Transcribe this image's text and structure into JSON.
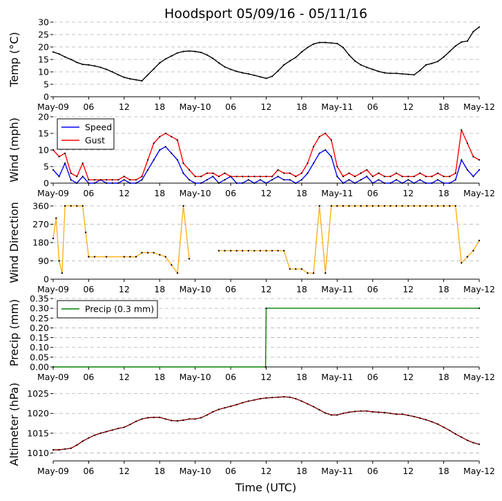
{
  "title": "Hoodsport 05/09/16 - 05/11/16",
  "xlabel": "Time (UTC)",
  "x_ticks": [
    "May-09",
    "06",
    "12",
    "18",
    "May-10",
    "06",
    "12",
    "18",
    "May-11",
    "06",
    "12",
    "18",
    "May-12"
  ],
  "colors": {
    "temp": "#000000",
    "speed": "#0000ff",
    "gust": "#ff0000",
    "direction": "#ffa500",
    "precip": "#008000",
    "altimeter": "#8b0000",
    "grid": "#b0b0b0"
  },
  "chart_data": [
    {
      "type": "line",
      "name": "temperature",
      "ylabel": "Temp (°C)",
      "x_unit": "hours since May-09 00 UTC",
      "xlim": [
        0,
        72
      ],
      "ylim": [
        0,
        30
      ],
      "yticks": [
        "0",
        "5",
        "10",
        "15",
        "20",
        "25",
        "30"
      ],
      "series": [
        {
          "name": "Temp",
          "color": "#000000",
          "x": [
            0,
            1,
            2,
            3,
            4,
            5,
            6,
            7,
            8,
            9,
            10,
            11,
            12,
            13,
            14,
            15,
            16,
            17,
            18,
            19,
            20,
            21,
            22,
            23,
            24,
            25,
            26,
            27,
            28,
            29,
            30,
            31,
            32,
            33,
            34,
            35,
            36,
            37,
            38,
            39,
            40,
            41,
            42,
            43,
            44,
            45,
            46,
            47,
            48,
            49,
            50,
            51,
            52,
            53,
            54,
            55,
            56,
            57,
            58,
            59,
            60,
            61,
            62,
            63,
            64,
            65,
            66,
            67,
            68,
            69,
            70,
            71,
            72
          ],
          "y": [
            18,
            17.2,
            16,
            15,
            13.8,
            13,
            12.8,
            12.4,
            11.8,
            11,
            10,
            8.8,
            7.8,
            7.2,
            6.8,
            6.4,
            8.8,
            11.2,
            13.6,
            15.2,
            16.4,
            17.6,
            18.2,
            18.4,
            18.2,
            17.8,
            16.8,
            15.4,
            13.6,
            12,
            11,
            10.2,
            9.6,
            9.2,
            8.6,
            8,
            7.4,
            8.2,
            10.4,
            12.8,
            14.4,
            15.8,
            18,
            19.8,
            21.2,
            21.8,
            21.8,
            21.6,
            21.4,
            19.8,
            16.8,
            14.4,
            12.8,
            11.8,
            11,
            10.2,
            9.6,
            9.4,
            9.4,
            9.2,
            9,
            8.8,
            10.6,
            12.8,
            13.4,
            14.2,
            16,
            18.2,
            20.4,
            22,
            22.4,
            26.2,
            28
          ]
        }
      ]
    },
    {
      "type": "line",
      "name": "wind",
      "ylabel": "Wind (mph)",
      "x_unit": "hours since May-09 00 UTC",
      "xlim": [
        0,
        72
      ],
      "ylim": [
        0,
        20
      ],
      "yticks": [
        "0",
        "5",
        "10",
        "15",
        "20"
      ],
      "legend_position": "top-left",
      "series": [
        {
          "name": "Speed",
          "color": "#0000ff",
          "x": [
            0,
            1,
            2,
            3,
            4,
            5,
            6,
            7,
            8,
            9,
            10,
            11,
            12,
            13,
            14,
            15,
            16,
            17,
            18,
            19,
            20,
            21,
            22,
            23,
            24,
            25,
            26,
            27,
            28,
            29,
            30,
            31,
            32,
            33,
            34,
            35,
            36,
            37,
            38,
            39,
            40,
            41,
            42,
            43,
            44,
            45,
            46,
            47,
            48,
            49,
            50,
            51,
            52,
            53,
            54,
            55,
            56,
            57,
            58,
            59,
            60,
            61,
            62,
            63,
            64,
            65,
            66,
            67,
            68,
            69,
            70,
            71,
            72
          ],
          "y": [
            4,
            2,
            6,
            1,
            0,
            2,
            0,
            0,
            1,
            0,
            0,
            0,
            1,
            0,
            0,
            1,
            4,
            7,
            10,
            11,
            9,
            7,
            3,
            1,
            0,
            0,
            1,
            2,
            0,
            1,
            2,
            0,
            0,
            1,
            0,
            1,
            0,
            1,
            2,
            1,
            1,
            0,
            1,
            3,
            6,
            9,
            10,
            8,
            2,
            0,
            1,
            0,
            1,
            2,
            0,
            1,
            0,
            0,
            1,
            0,
            1,
            0,
            1,
            0,
            0,
            1,
            0,
            0,
            1,
            7,
            4,
            2,
            4
          ]
        },
        {
          "name": "Gust",
          "color": "#ff0000",
          "x": [
            0,
            1,
            2,
            3,
            4,
            5,
            6,
            7,
            8,
            9,
            10,
            11,
            12,
            13,
            14,
            15,
            16,
            17,
            18,
            19,
            20,
            21,
            22,
            23,
            24,
            25,
            26,
            27,
            28,
            29,
            30,
            31,
            32,
            33,
            34,
            35,
            36,
            37,
            38,
            39,
            40,
            41,
            42,
            43,
            44,
            45,
            46,
            47,
            48,
            49,
            50,
            51,
            52,
            53,
            54,
            55,
            56,
            57,
            58,
            59,
            60,
            61,
            62,
            63,
            64,
            65,
            66,
            67,
            68,
            69,
            70,
            71,
            72
          ],
          "y": [
            10,
            8,
            9,
            3,
            2,
            6,
            1,
            1,
            1,
            1,
            1,
            1,
            2,
            1,
            1,
            2,
            7,
            12,
            14,
            15,
            14,
            13,
            6,
            4,
            2,
            2,
            3,
            3,
            2,
            3,
            2,
            2,
            2,
            2,
            2,
            2,
            2,
            2,
            4,
            3,
            3,
            2,
            3,
            6,
            11,
            14,
            15,
            13,
            5,
            2,
            3,
            2,
            3,
            4,
            2,
            3,
            2,
            2,
            3,
            2,
            2,
            2,
            3,
            2,
            2,
            3,
            2,
            2,
            3,
            16,
            12,
            8,
            7
          ]
        }
      ]
    },
    {
      "type": "scatter",
      "name": "wind_direction",
      "ylabel": "Wind Direction",
      "x_unit": "hours since May-09 00 UTC",
      "xlim": [
        0,
        72
      ],
      "ylim": [
        0,
        360
      ],
      "yticks": [
        "0",
        "90",
        "180",
        "270",
        "360"
      ],
      "series": [
        {
          "name": "Direction",
          "color": "#ffa500",
          "x": [
            0,
            0.5,
            1,
            1.5,
            2,
            3,
            4,
            5,
            5.5,
            6,
            7,
            9,
            12,
            13,
            14,
            15,
            16,
            17,
            18,
            19,
            20,
            21,
            22,
            23,
            24,
            25,
            28,
            29,
            30,
            31,
            32,
            33,
            34,
            35,
            36,
            37,
            38,
            39,
            40,
            41,
            42,
            43,
            44,
            45,
            46,
            47,
            48,
            49,
            50,
            51,
            52,
            53,
            54,
            55,
            56,
            57,
            58,
            59,
            60,
            61,
            62,
            63,
            64,
            65,
            66,
            67,
            68,
            69,
            70,
            71,
            72
          ],
          "y": [
            200,
            300,
            90,
            30,
            360,
            360,
            360,
            360,
            230,
            110,
            110,
            110,
            110,
            110,
            110,
            130,
            130,
            130,
            120,
            110,
            70,
            30,
            360,
            100,
            null,
            null,
            140,
            140,
            140,
            140,
            140,
            140,
            140,
            140,
            140,
            140,
            140,
            140,
            50,
            50,
            50,
            30,
            30,
            360,
            30,
            360,
            360,
            360,
            360,
            360,
            360,
            360,
            360,
            360,
            360,
            360,
            360,
            360,
            360,
            360,
            360,
            360,
            360,
            360,
            360,
            360,
            360,
            80,
            110,
            140,
            190
          ]
        }
      ]
    },
    {
      "type": "line",
      "name": "precip",
      "ylabel": "Precip (mm)",
      "x_unit": "hours since May-09 00 UTC",
      "xlim": [
        0,
        72
      ],
      "ylim": [
        0,
        0.35
      ],
      "yticks": [
        "0.00",
        "0.05",
        "0.10",
        "0.15",
        "0.20",
        "0.25",
        "0.30",
        "0.35"
      ],
      "legend_position": "top-left",
      "series": [
        {
          "name": "Precip (0.3 mm)",
          "color": "#008000",
          "x": [
            0,
            35.9,
            36,
            72
          ],
          "y": [
            0,
            0,
            0.3,
            0.3
          ]
        }
      ]
    },
    {
      "type": "line",
      "name": "altimeter",
      "ylabel": "Altimeter (hPa)",
      "x_unit": "hours since May-09 00 UTC",
      "xlim": [
        0,
        72
      ],
      "ylim": [
        1008,
        1026.5
      ],
      "yticks": [
        "1010",
        "1015",
        "1020",
        "1025"
      ],
      "series": [
        {
          "name": "Altimeter",
          "color": "#8b0000",
          "x": [
            0,
            1,
            2,
            3,
            4,
            5,
            6,
            7,
            8,
            9,
            10,
            11,
            12,
            13,
            14,
            15,
            16,
            17,
            18,
            19,
            20,
            21,
            22,
            23,
            24,
            25,
            26,
            27,
            28,
            29,
            30,
            31,
            32,
            33,
            34,
            35,
            36,
            37,
            38,
            39,
            40,
            41,
            42,
            43,
            44,
            45,
            46,
            47,
            48,
            49,
            50,
            51,
            52,
            53,
            54,
            55,
            56,
            57,
            58,
            59,
            60,
            61,
            62,
            63,
            64,
            65,
            66,
            67,
            68,
            69,
            70,
            71,
            72
          ],
          "y": [
            1010.8,
            1010.8,
            1011,
            1011.2,
            1012,
            1013,
            1013.8,
            1014.5,
            1015,
            1015.4,
            1015.8,
            1016.2,
            1016.5,
            1017.2,
            1018,
            1018.6,
            1018.9,
            1019,
            1019,
            1018.6,
            1018.2,
            1018.1,
            1018.3,
            1018.6,
            1018.6,
            1018.9,
            1019.6,
            1020.4,
            1021,
            1021.4,
            1021.8,
            1022.2,
            1022.7,
            1023.1,
            1023.4,
            1023.7,
            1023.9,
            1024,
            1024.1,
            1024.2,
            1024.1,
            1023.7,
            1023.1,
            1022.4,
            1021.7,
            1020.9,
            1020.1,
            1019.6,
            1019.6,
            1020,
            1020.3,
            1020.5,
            1020.6,
            1020.6,
            1020.4,
            1020.3,
            1020.2,
            1020,
            1019.8,
            1019.8,
            1019.5,
            1019.2,
            1018.8,
            1018.4,
            1017.9,
            1017.3,
            1016.5,
            1015.7,
            1014.8,
            1014,
            1013.2,
            1012.6,
            1012.2
          ]
        }
      ]
    }
  ]
}
